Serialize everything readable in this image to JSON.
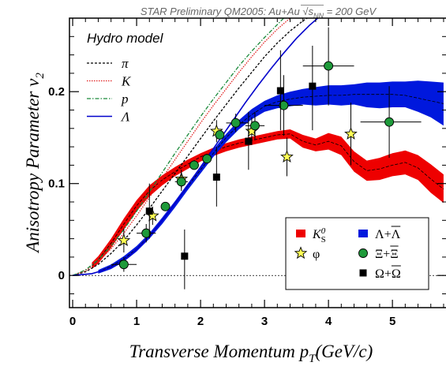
{
  "chart_data": {
    "type": "scatter",
    "header": {
      "prefix": "STAR Preliminary QM2005: Au+Au ",
      "sqrt": "s",
      "sqrt_sub": "NN",
      "suffix": " = 200 GeV"
    },
    "xlabel": {
      "main": "Transverse Momentum p",
      "sub": "T",
      "tail": "(GeV/c)"
    },
    "ylabel": {
      "main": "Anisotropy Parameter v",
      "sub": "2"
    },
    "xlim": [
      -0.05,
      5.85
    ],
    "ylim": [
      -0.035,
      0.28
    ],
    "xticks": [
      0,
      1,
      2,
      3,
      4,
      5
    ],
    "xtick_labels": [
      "0",
      "1",
      "2",
      "3",
      "4",
      "5"
    ],
    "yticks": [
      0,
      0.1,
      0.2
    ],
    "ytick_labels": [
      "0",
      "0.1",
      "0.2"
    ],
    "hydro": {
      "title": "Hydro model",
      "legend": [
        {
          "key": "pi",
          "label": "π",
          "color": "#000000",
          "dash": "3,2"
        },
        {
          "key": "K",
          "label": "K",
          "color": "#e02020",
          "dash": "1.5,1.5"
        },
        {
          "key": "p",
          "label": "p",
          "color": "#1a8a3a",
          "dash": "5,2,1.5,2"
        },
        {
          "key": "Lambda",
          "label": "Λ",
          "color": "#0000cc",
          "dash": ""
        }
      ],
      "curves": {
        "pi": [
          [
            0,
            0
          ],
          [
            0.2,
            0.004
          ],
          [
            0.4,
            0.012
          ],
          [
            0.6,
            0.024
          ],
          [
            0.8,
            0.038
          ],
          [
            1.0,
            0.055
          ],
          [
            1.2,
            0.073
          ],
          [
            1.4,
            0.092
          ],
          [
            1.6,
            0.111
          ],
          [
            1.8,
            0.13
          ],
          [
            2.0,
            0.149
          ],
          [
            2.2,
            0.168
          ],
          [
            2.4,
            0.186
          ],
          [
            2.6,
            0.204
          ],
          [
            2.8,
            0.221
          ],
          [
            3.0,
            0.238
          ],
          [
            3.2,
            0.253
          ],
          [
            3.4,
            0.266
          ],
          [
            3.6,
            0.277
          ],
          [
            3.8,
            0.286
          ]
        ],
        "K": [
          [
            0,
            0
          ],
          [
            0.2,
            0.005
          ],
          [
            0.4,
            0.015
          ],
          [
            0.6,
            0.029
          ],
          [
            0.8,
            0.046
          ],
          [
            1.0,
            0.065
          ],
          [
            1.2,
            0.085
          ],
          [
            1.4,
            0.106
          ],
          [
            1.6,
            0.126
          ],
          [
            1.8,
            0.146
          ],
          [
            2.0,
            0.166
          ],
          [
            2.2,
            0.185
          ],
          [
            2.4,
            0.203
          ],
          [
            2.6,
            0.221
          ],
          [
            2.8,
            0.238
          ],
          [
            3.0,
            0.254
          ],
          [
            3.2,
            0.268
          ],
          [
            3.4,
            0.28
          ]
        ],
        "p": [
          [
            0,
            0
          ],
          [
            0.2,
            0.006
          ],
          [
            0.4,
            0.017
          ],
          [
            0.6,
            0.032
          ],
          [
            0.8,
            0.05
          ],
          [
            1.0,
            0.07
          ],
          [
            1.2,
            0.091
          ],
          [
            1.4,
            0.112
          ],
          [
            1.6,
            0.133
          ],
          [
            1.8,
            0.153
          ],
          [
            2.0,
            0.173
          ],
          [
            2.2,
            0.192
          ],
          [
            2.4,
            0.21
          ],
          [
            2.6,
            0.228
          ],
          [
            2.8,
            0.244
          ],
          [
            3.0,
            0.259
          ],
          [
            3.2,
            0.273
          ],
          [
            3.3,
            0.28
          ]
        ],
        "Lambda": [
          [
            0,
            0
          ],
          [
            0.3,
            0.002
          ],
          [
            0.5,
            0.006
          ],
          [
            0.7,
            0.012
          ],
          [
            0.9,
            0.022
          ],
          [
            1.1,
            0.035
          ],
          [
            1.3,
            0.051
          ],
          [
            1.5,
            0.069
          ],
          [
            1.7,
            0.088
          ],
          [
            1.9,
            0.108
          ],
          [
            2.1,
            0.128
          ],
          [
            2.3,
            0.148
          ],
          [
            2.5,
            0.168
          ],
          [
            2.7,
            0.188
          ],
          [
            2.9,
            0.207
          ],
          [
            3.1,
            0.225
          ],
          [
            3.3,
            0.242
          ],
          [
            3.5,
            0.258
          ],
          [
            3.7,
            0.272
          ],
          [
            3.85,
            0.281
          ]
        ]
      }
    },
    "bands": [
      {
        "key": "K0S",
        "color": "#ee0000",
        "x": [
          0.3,
          0.4,
          0.6,
          0.8,
          1.0,
          1.2,
          1.4,
          1.6,
          1.8,
          2.0,
          2.2,
          2.4,
          2.6,
          2.8,
          3.0,
          3.2,
          3.4,
          3.6,
          3.8,
          4.0,
          4.2,
          4.4,
          4.6,
          4.8,
          5.0,
          5.2,
          5.4,
          5.6,
          5.8
        ],
        "lower": [
          0.007,
          0.013,
          0.03,
          0.05,
          0.07,
          0.086,
          0.098,
          0.108,
          0.116,
          0.124,
          0.13,
          0.135,
          0.139,
          0.142,
          0.145,
          0.148,
          0.149,
          0.139,
          0.135,
          0.137,
          0.131,
          0.113,
          0.103,
          0.104,
          0.108,
          0.11,
          0.104,
          0.09,
          0.079
        ],
        "mid": [
          0.01,
          0.017,
          0.035,
          0.056,
          0.076,
          0.092,
          0.104,
          0.113,
          0.121,
          0.129,
          0.135,
          0.14,
          0.144,
          0.147,
          0.15,
          0.153,
          0.154,
          0.146,
          0.142,
          0.146,
          0.141,
          0.124,
          0.114,
          0.116,
          0.12,
          0.123,
          0.117,
          0.105,
          0.094
        ],
        "upper": [
          0.014,
          0.021,
          0.04,
          0.062,
          0.082,
          0.098,
          0.109,
          0.118,
          0.126,
          0.133,
          0.139,
          0.144,
          0.148,
          0.151,
          0.154,
          0.157,
          0.159,
          0.153,
          0.149,
          0.155,
          0.151,
          0.135,
          0.125,
          0.128,
          0.133,
          0.136,
          0.131,
          0.121,
          0.11
        ]
      },
      {
        "key": "Lambda",
        "color": "#0018dd",
        "x": [
          0.4,
          0.6,
          0.8,
          1.0,
          1.2,
          1.4,
          1.6,
          1.8,
          2.0,
          2.2,
          2.4,
          2.6,
          2.8,
          3.0,
          3.2,
          3.4,
          3.6,
          3.8,
          4.0,
          4.2,
          4.4,
          4.6,
          4.8,
          5.0,
          5.2,
          5.4,
          5.6,
          5.8
        ],
        "lower": [
          0.002,
          0.007,
          0.015,
          0.026,
          0.04,
          0.056,
          0.074,
          0.093,
          0.111,
          0.129,
          0.145,
          0.159,
          0.17,
          0.178,
          0.182,
          0.184,
          0.186,
          0.185,
          0.186,
          0.185,
          0.186,
          0.183,
          0.182,
          0.183,
          0.183,
          0.178,
          0.172,
          0.163
        ],
        "mid": [
          0.004,
          0.01,
          0.018,
          0.029,
          0.043,
          0.06,
          0.078,
          0.097,
          0.115,
          0.133,
          0.15,
          0.164,
          0.175,
          0.184,
          0.189,
          0.192,
          0.194,
          0.195,
          0.196,
          0.196,
          0.197,
          0.197,
          0.197,
          0.197,
          0.196,
          0.193,
          0.19,
          0.187
        ],
        "upper": [
          0.006,
          0.012,
          0.021,
          0.032,
          0.046,
          0.063,
          0.081,
          0.1,
          0.119,
          0.137,
          0.154,
          0.169,
          0.181,
          0.19,
          0.196,
          0.2,
          0.203,
          0.205,
          0.207,
          0.207,
          0.208,
          0.21,
          0.21,
          0.211,
          0.211,
          0.212,
          0.211,
          0.21
        ]
      }
    ],
    "points": [
      {
        "key": "phi",
        "marker": "star",
        "color": "#ffff55",
        "data": [
          {
            "x": 0.8,
            "y": 0.038,
            "ylo": 0.025,
            "yhi": 0.051
          },
          {
            "x": 1.25,
            "y": 0.065,
            "ylo": 0.055,
            "yhi": 0.075
          },
          {
            "x": 1.7,
            "y": 0.105,
            "ylo": 0.095,
            "yhi": 0.115
          },
          {
            "x": 2.25,
            "y": 0.157,
            "ylo": 0.145,
            "yhi": 0.169
          },
          {
            "x": 2.8,
            "y": 0.157,
            "ylo": 0.142,
            "yhi": 0.172
          },
          {
            "x": 3.35,
            "y": 0.129,
            "ylo": 0.108,
            "yhi": 0.15
          },
          {
            "x": 4.35,
            "y": 0.154,
            "ylo": 0.12,
            "yhi": 0.188
          }
        ]
      },
      {
        "key": "Xi",
        "marker": "circle",
        "color": "#1e9a3a",
        "data": [
          {
            "x": 0.8,
            "y": 0.012,
            "xlo": 0.6,
            "xhi": 1.0,
            "ylo": 0.004,
            "yhi": 0.02
          },
          {
            "x": 1.15,
            "y": 0.046,
            "xlo": 1.0,
            "xhi": 1.3,
            "ylo": 0.036,
            "yhi": 0.056
          },
          {
            "x": 1.45,
            "y": 0.075
          },
          {
            "x": 1.7,
            "y": 0.102,
            "xlo": 1.6,
            "xhi": 1.8,
            "ylo": 0.092,
            "yhi": 0.112
          },
          {
            "x": 1.9,
            "y": 0.12
          },
          {
            "x": 2.1,
            "y": 0.127
          },
          {
            "x": 2.3,
            "y": 0.153
          },
          {
            "x": 2.55,
            "y": 0.166,
            "xlo": 2.4,
            "xhi": 2.75,
            "ylo": 0.156,
            "yhi": 0.176
          },
          {
            "x": 2.85,
            "y": 0.163,
            "xlo": 2.7,
            "xhi": 3.0,
            "ylo": 0.148,
            "yhi": 0.178
          },
          {
            "x": 3.3,
            "y": 0.185,
            "xlo": 3.0,
            "xhi": 3.6,
            "ylo": 0.152,
            "yhi": 0.218
          },
          {
            "x": 4.0,
            "y": 0.228,
            "xlo": 3.6,
            "xhi": 4.4,
            "ylo": 0.185,
            "yhi": 0.27
          },
          {
            "x": 4.95,
            "y": 0.167,
            "xlo": 4.5,
            "xhi": 5.45,
            "ylo": 0.128,
            "yhi": 0.206
          }
        ]
      },
      {
        "key": "Omega",
        "marker": "square",
        "color": "#000000",
        "data": [
          {
            "x": 1.2,
            "y": 0.07,
            "ylo": 0.04,
            "yhi": 0.1
          },
          {
            "x": 1.75,
            "y": 0.021,
            "ylo": -0.015,
            "yhi": 0.05
          },
          {
            "x": 2.25,
            "y": 0.107,
            "ylo": 0.075,
            "yhi": 0.14
          },
          {
            "x": 2.75,
            "y": 0.146,
            "ylo": 0.115,
            "yhi": 0.178
          },
          {
            "x": 3.25,
            "y": 0.201,
            "ylo": 0.158,
            "yhi": 0.245
          },
          {
            "x": 3.75,
            "y": 0.206,
            "ylo": 0.158,
            "yhi": 0.25
          }
        ]
      }
    ],
    "legend": [
      {
        "key": "K0S",
        "sym": "K",
        "sub": "S",
        "sup": "0",
        "marker": "box",
        "color": "#ee0000"
      },
      {
        "key": "Lambda",
        "sym": "Λ+Λ",
        "bar_start": 2,
        "marker": "box",
        "color": "#0018dd"
      },
      {
        "key": "phi",
        "sym": "φ",
        "marker": "star",
        "color": "#ffff55"
      },
      {
        "key": "Xi",
        "sym": "Ξ+Ξ",
        "bar_start": 2,
        "marker": "circle",
        "color": "#1e9a3a"
      },
      {
        "key": "Omega",
        "sym": "Ω+Ω",
        "bar_start": 2,
        "marker": "square",
        "color": "#000000"
      }
    ],
    "grid": false,
    "legend_position": "bottom-right"
  }
}
